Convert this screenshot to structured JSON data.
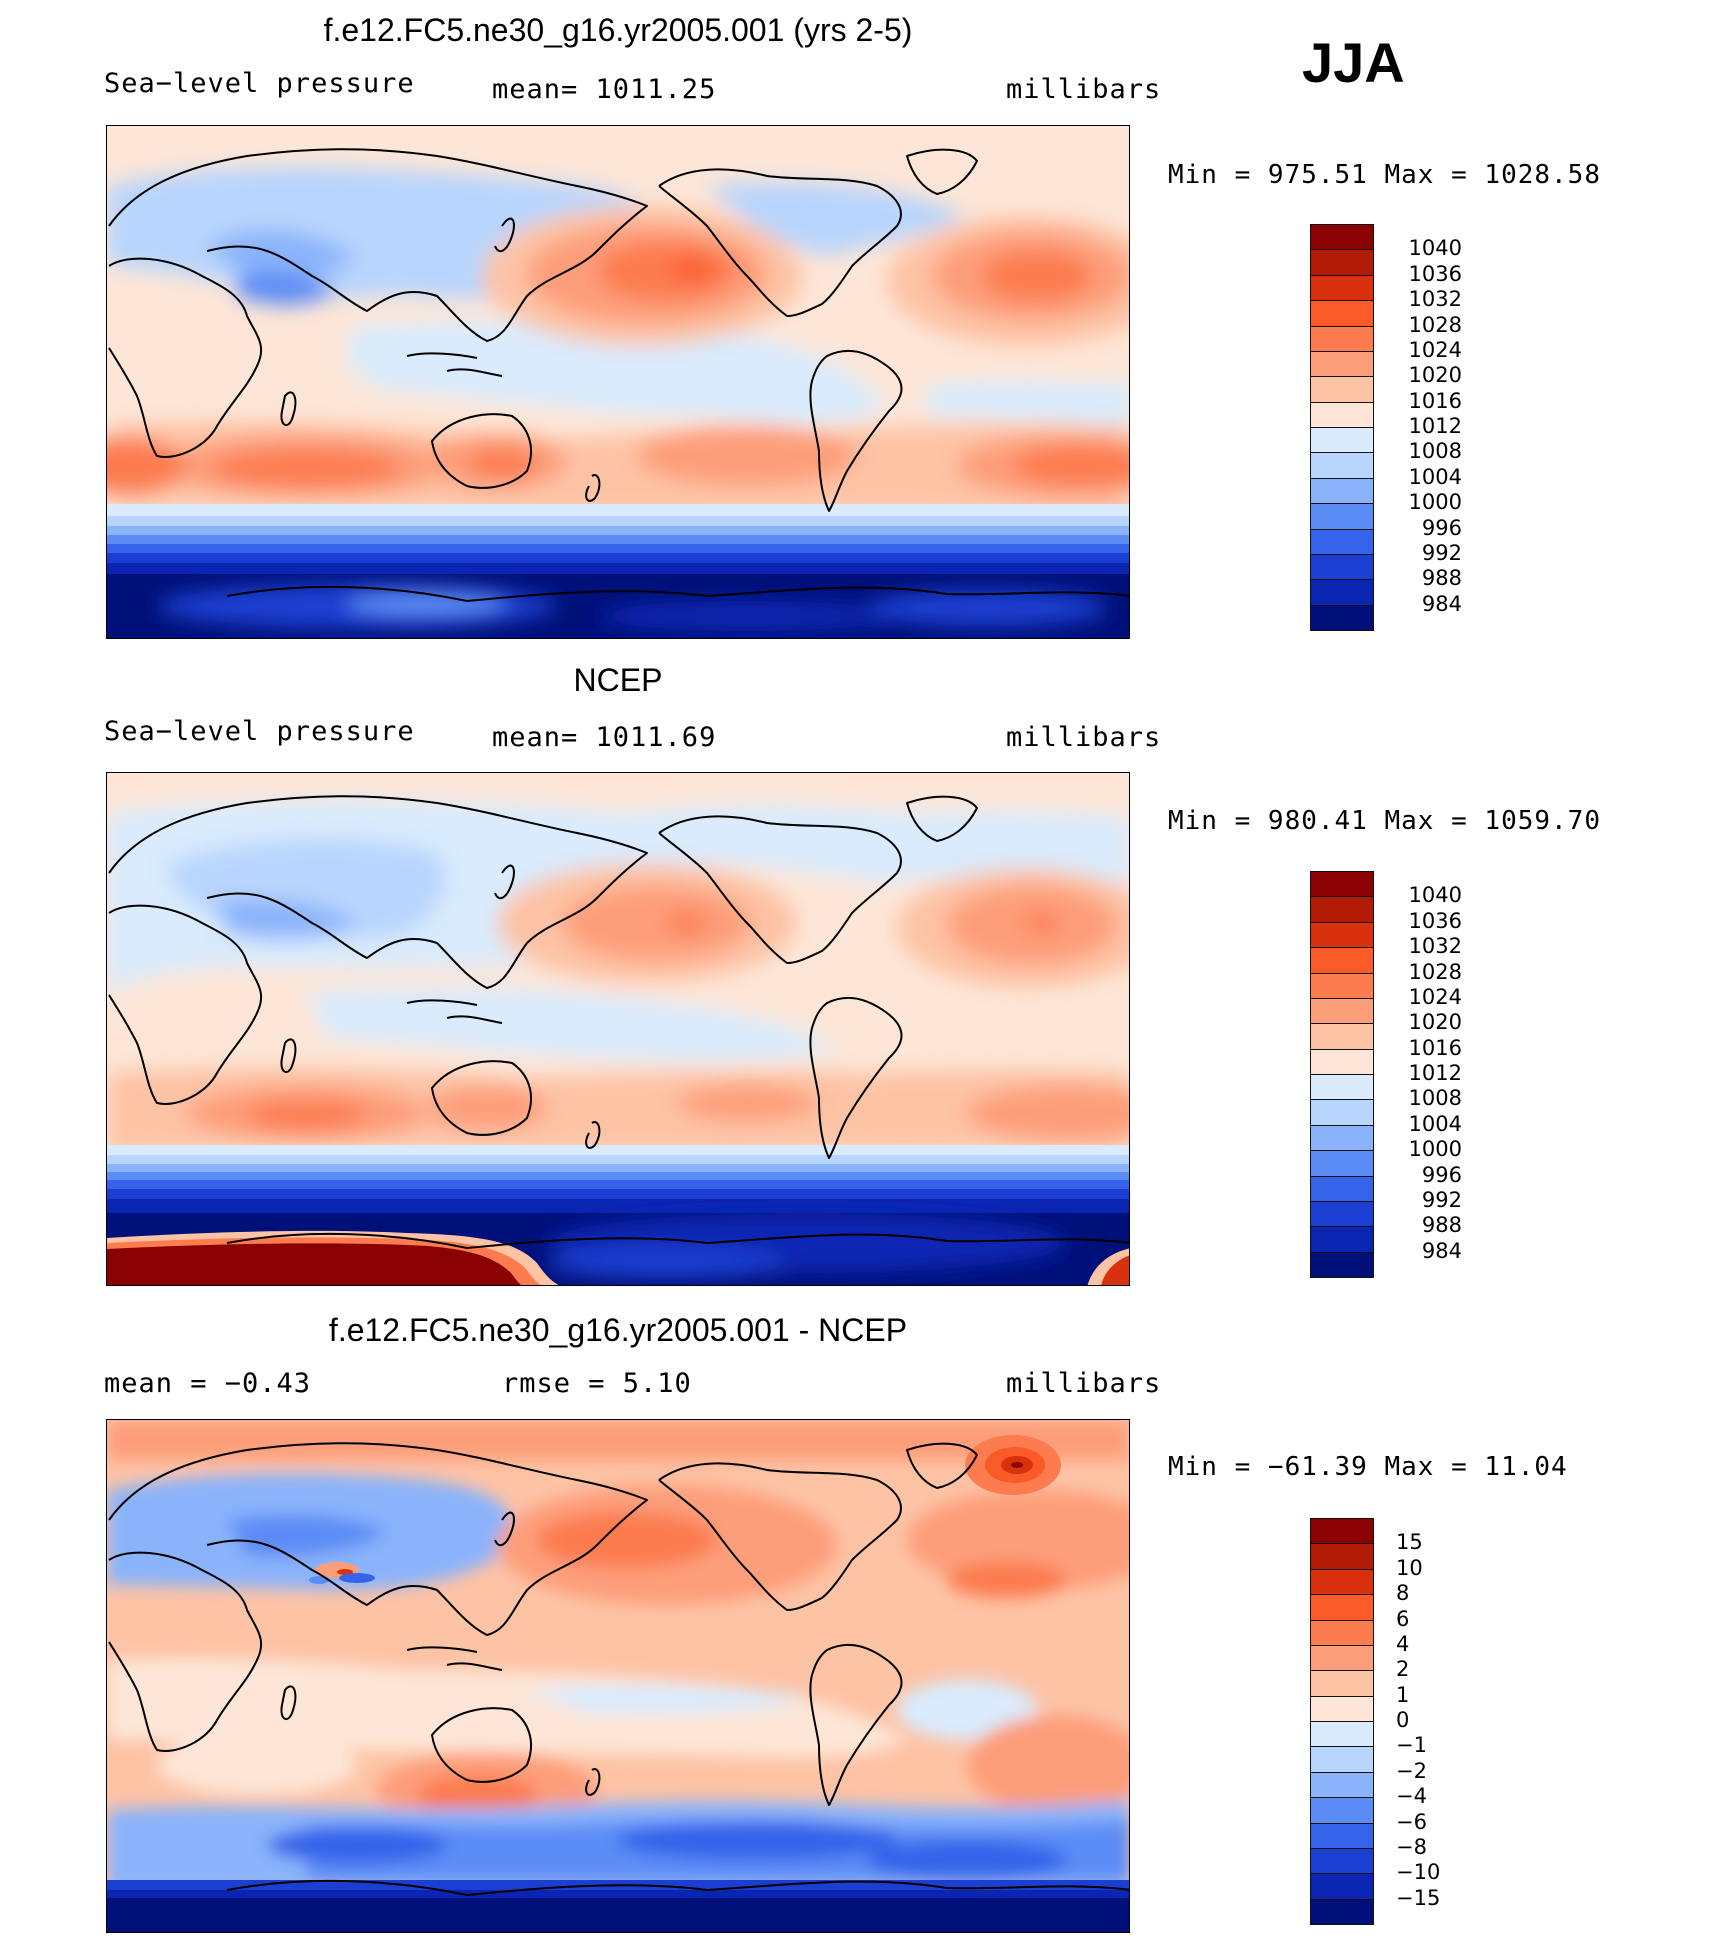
{
  "season": "JJA",
  "panels": [
    {
      "id": "model",
      "title": "f.e12.FC5.ne30_g16.yr2005.001 (yrs 2-5)",
      "left_label": "Sea−level pressure",
      "center_label": "mean=  1011.25",
      "units": "millibars",
      "minmax": "Min  =  975.51  Max  =  1028.58"
    },
    {
      "id": "obs",
      "title": "NCEP",
      "left_label": "Sea−level pressure",
      "center_label": "mean=  1011.69",
      "units": "millibars",
      "minmax": "Min  =  980.41  Max  =  1059.70"
    },
    {
      "id": "diff",
      "title": "f.e12.FC5.ne30_g16.yr2005.001 - NCEP",
      "left_label": "mean  =    −0.43",
      "center_label": "rmse  =     5.10",
      "units": "millibars",
      "minmax": "Min  =  −61.39  Max  =    11.04"
    }
  ],
  "chart_data": [
    {
      "type": "heatmap",
      "title": "f.e12.FC5.ne30_g16.yr2005.001 (yrs 2-5)",
      "variable": "Sea-level pressure",
      "units": "millibars",
      "mean": 1011.25,
      "min": 975.51,
      "max": 1028.58,
      "levels": [
        "1040",
        "1036",
        "1032",
        "1028",
        "1024",
        "1020",
        "1016",
        "1012",
        "1008",
        "1004",
        "1000",
        "996",
        "992",
        "988",
        "984"
      ],
      "colors": [
        "#8b0000",
        "#b31a05",
        "#d9300d",
        "#fa5a27",
        "#fc7c50",
        "#fd9e7a",
        "#fdc3a5",
        "#fde6d7",
        "#d9ebfd",
        "#b8d5fd",
        "#8ab3fb",
        "#5c8cf5",
        "#3563ea",
        "#1b3fd2",
        "#0b25b3",
        "#00107a"
      ],
      "features": {
        "north_pacific_high": {
          "value": 1026
        },
        "north_atlantic_high": {
          "value": 1026
        },
        "south_hemisphere_highs": {
          "value": 1024
        },
        "southern_ocean_low": {
          "value": 984
        }
      }
    },
    {
      "type": "heatmap",
      "title": "NCEP",
      "variable": "Sea-level pressure",
      "units": "millibars",
      "mean": 1011.69,
      "min": 980.41,
      "max": 1059.7,
      "levels": [
        "1040",
        "1036",
        "1032",
        "1028",
        "1024",
        "1020",
        "1016",
        "1012",
        "1008",
        "1004",
        "1000",
        "996",
        "992",
        "988",
        "984"
      ],
      "colors": [
        "#8b0000",
        "#b31a05",
        "#d9300d",
        "#fa5a27",
        "#fc7c50",
        "#fd9e7a",
        "#fdc3a5",
        "#fde6d7",
        "#d9ebfd",
        "#b8d5fd",
        "#8ab3fb",
        "#5c8cf5",
        "#3563ea",
        "#1b3fd2",
        "#0b25b3",
        "#00107a"
      ],
      "features": {
        "north_pacific_high": {
          "value": 1024
        },
        "north_atlantic_high": {
          "value": 1024
        },
        "south_hemisphere_highs": {
          "value": 1022
        },
        "antarctic_high": {
          "value": 1040
        },
        "southern_ocean_low": {
          "value": 984
        }
      }
    },
    {
      "type": "heatmap",
      "title": "f.e12.FC5.ne30_g16.yr2005.001 - NCEP",
      "variable": "Sea-level pressure difference",
      "units": "millibars",
      "mean": -0.43,
      "rmse": 5.1,
      "min": -61.39,
      "max": 11.04,
      "levels": [
        "15",
        "10",
        "8",
        "6",
        "4",
        "2",
        "1",
        "0",
        "−1",
        "−2",
        "−4",
        "−6",
        "−8",
        "−10",
        "−15"
      ],
      "colors": [
        "#8b0000",
        "#b31a05",
        "#d9300d",
        "#fa5a27",
        "#fc7c50",
        "#fd9e7a",
        "#fdc3a5",
        "#fde6d7",
        "#d9ebfd",
        "#b8d5fd",
        "#8ab3fb",
        "#5c8cf5",
        "#3563ea",
        "#1b3fd2",
        "#0b25b3",
        "#00107a"
      ],
      "features": {
        "greenland_positive": {
          "value": 10
        },
        "north_pacific_positive": {
          "value": 4
        },
        "australia_positive": {
          "value": 4
        },
        "antarctic_negative": {
          "value": -15
        }
      }
    }
  ]
}
